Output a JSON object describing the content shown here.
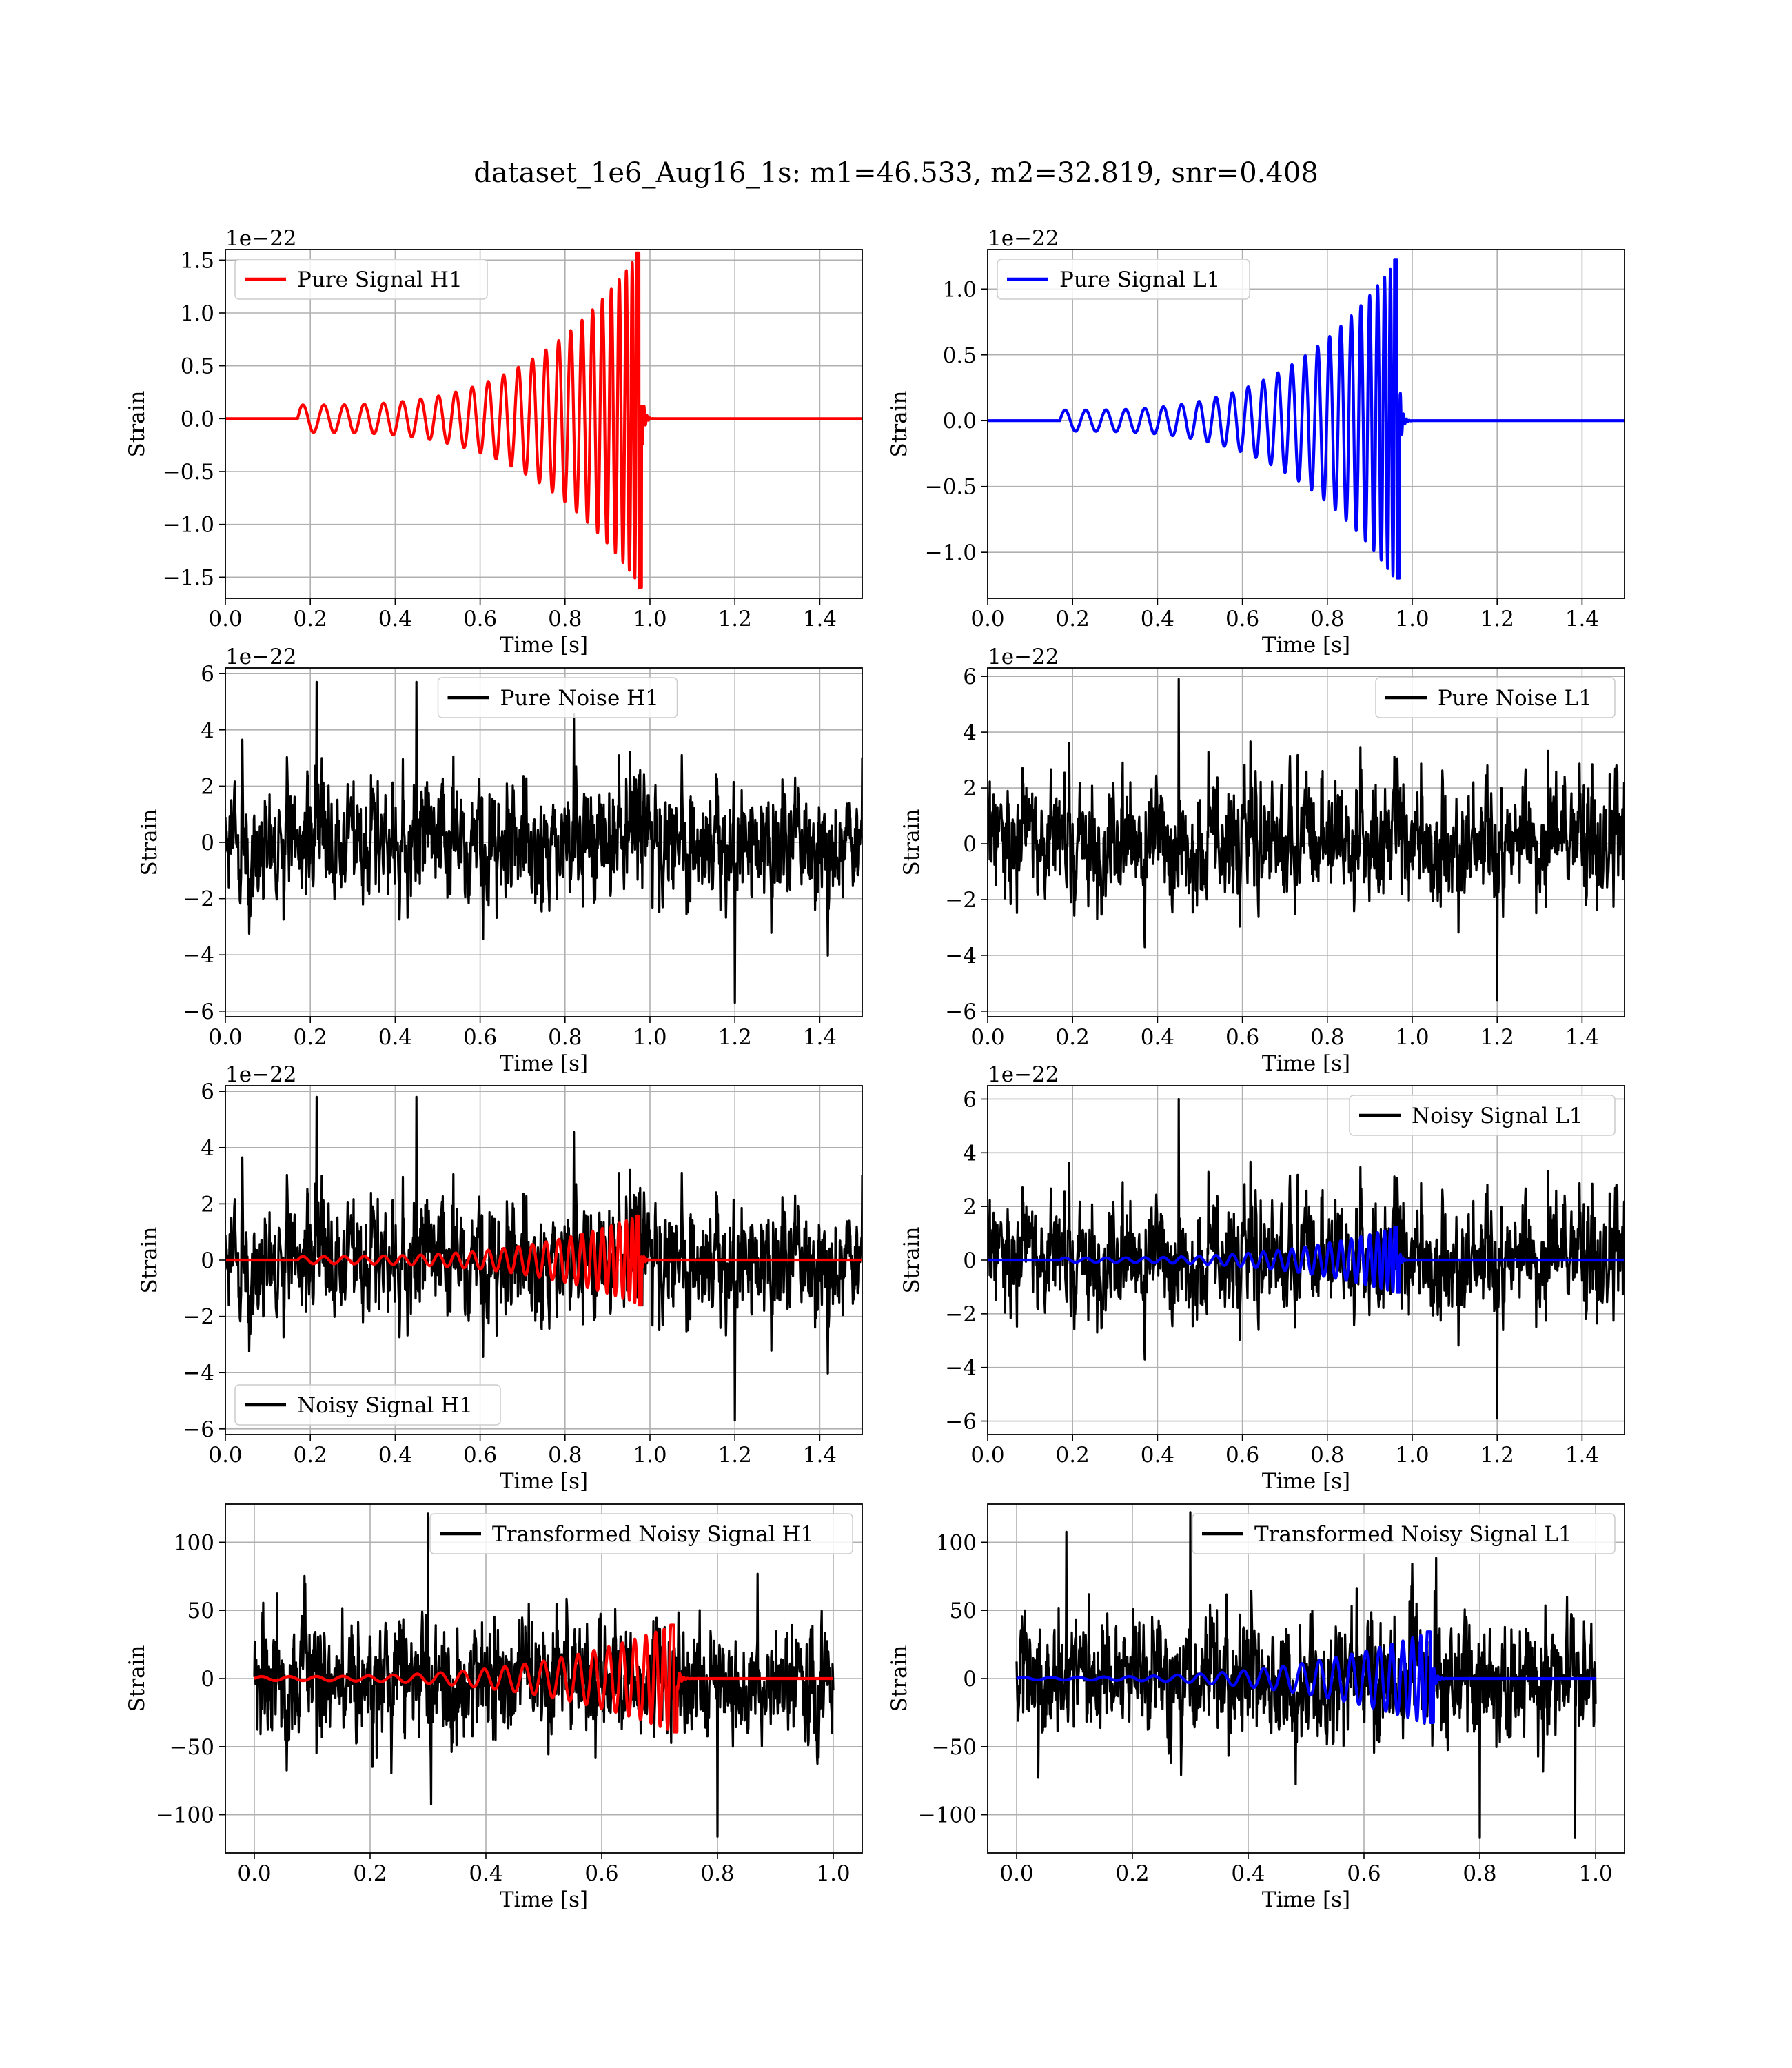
{
  "figure": {
    "title": "dataset_1e6_Aug16_1s: m1=46.533, m2=32.819, snr=0.408"
  },
  "colors": {
    "h1_signal": "#ff0000",
    "l1_signal": "#0000ff",
    "noise": "#000000",
    "grid": "#b0b0b0"
  },
  "chart_data": [
    {
      "id": "pure-signal-h1",
      "type": "line",
      "title": "",
      "xlabel": "Time [s]",
      "ylabel": "Strain",
      "offset_text": "1e−22",
      "xlim": [
        0.0,
        1.5
      ],
      "ylim": [
        -1.7,
        1.6
      ],
      "xticks": [
        "0.0",
        "0.2",
        "0.4",
        "0.6",
        "0.8",
        "1.0",
        "1.2",
        "1.4"
      ],
      "yticks": [
        "−1.5",
        "−1.0",
        "−0.5",
        "0.0",
        "0.5",
        "1.0",
        "1.5"
      ],
      "legend_position": "upper left",
      "grid": true,
      "series": [
        {
          "name": "Pure Signal H1",
          "color": "#ff0000",
          "kind": "chirp",
          "x_end": 1.5,
          "t0": 0.17,
          "tc": 0.98,
          "amp_start": 0.13,
          "amp_peak": 1.6,
          "peak_neg": -1.63,
          "cycles": 26,
          "seed": 1
        }
      ]
    },
    {
      "id": "pure-signal-l1",
      "type": "line",
      "title": "",
      "xlabel": "Time [s]",
      "ylabel": "Strain",
      "offset_text": "1e−22",
      "xlim": [
        0.0,
        1.5
      ],
      "ylim": [
        -1.35,
        1.3
      ],
      "xticks": [
        "0.0",
        "0.2",
        "0.4",
        "0.6",
        "0.8",
        "1.0",
        "1.2",
        "1.4"
      ],
      "yticks": [
        "−1.0",
        "−0.5",
        "0.0",
        "0.5",
        "1.0"
      ],
      "legend_position": "upper left",
      "grid": true,
      "series": [
        {
          "name": "Pure Signal L1",
          "color": "#0000ff",
          "kind": "chirp",
          "x_end": 1.5,
          "t0": 0.17,
          "tc": 0.97,
          "amp_start": 0.08,
          "amp_peak": 1.25,
          "peak_neg": -1.22,
          "cycles": 26,
          "seed": 2
        }
      ]
    },
    {
      "id": "pure-noise-h1",
      "type": "line",
      "title": "",
      "xlabel": "Time [s]",
      "ylabel": "Strain",
      "offset_text": "1e−22",
      "xlim": [
        0.0,
        1.5
      ],
      "ylim": [
        -6.2,
        6.2
      ],
      "xticks": [
        "0.0",
        "0.2",
        "0.4",
        "0.6",
        "0.8",
        "1.0",
        "1.2",
        "1.4"
      ],
      "yticks": [
        "−6",
        "−4",
        "−2",
        "0",
        "2",
        "4",
        "6"
      ],
      "legend_position": "upper center",
      "grid": true,
      "series": [
        {
          "name": "Pure Noise H1",
          "color": "#000000",
          "kind": "noise",
          "x_end": 1.5,
          "sigma": 1.35,
          "max": 5.7,
          "min": -5.7,
          "seed": 11
        }
      ]
    },
    {
      "id": "pure-noise-l1",
      "type": "line",
      "title": "",
      "xlabel": "Time [s]",
      "ylabel": "Strain",
      "offset_text": "1e−22",
      "xlim": [
        0.0,
        1.5
      ],
      "ylim": [
        -6.2,
        6.3
      ],
      "xticks": [
        "0.0",
        "0.2",
        "0.4",
        "0.6",
        "0.8",
        "1.0",
        "1.2",
        "1.4"
      ],
      "yticks": [
        "−6",
        "−4",
        "−2",
        "0",
        "2",
        "4",
        "6"
      ],
      "legend_position": "upper right",
      "grid": true,
      "series": [
        {
          "name": "Pure Noise L1",
          "color": "#000000",
          "kind": "noise",
          "x_end": 1.5,
          "sigma": 1.35,
          "max": 5.9,
          "min": -5.6,
          "seed": 12
        }
      ]
    },
    {
      "id": "noisy-signal-h1",
      "type": "line",
      "title": "",
      "xlabel": "Time [s]",
      "ylabel": "Strain",
      "offset_text": "1e−22",
      "xlim": [
        0.0,
        1.5
      ],
      "ylim": [
        -6.2,
        6.2
      ],
      "xticks": [
        "0.0",
        "0.2",
        "0.4",
        "0.6",
        "0.8",
        "1.0",
        "1.2",
        "1.4"
      ],
      "yticks": [
        "−6",
        "−4",
        "−2",
        "0",
        "2",
        "4",
        "6"
      ],
      "legend_position": "lower left",
      "grid": true,
      "series": [
        {
          "name": "Noisy Signal H1",
          "color": "#000000",
          "kind": "noise",
          "x_end": 1.5,
          "sigma": 1.35,
          "max": 5.8,
          "min": -5.7,
          "seed": 11
        },
        {
          "name": "",
          "color": "#ff0000",
          "kind": "chirp",
          "x_end": 1.5,
          "t0": 0.17,
          "tc": 0.98,
          "amp_start": 0.13,
          "amp_peak": 1.6,
          "peak_neg": -1.63,
          "cycles": 26,
          "seed": 1
        }
      ]
    },
    {
      "id": "noisy-signal-l1",
      "type": "line",
      "title": "",
      "xlabel": "Time [s]",
      "ylabel": "Strain",
      "offset_text": "1e−22",
      "xlim": [
        0.0,
        1.5
      ],
      "ylim": [
        -6.5,
        6.5
      ],
      "xticks": [
        "0.0",
        "0.2",
        "0.4",
        "0.6",
        "0.8",
        "1.0",
        "1.2",
        "1.4"
      ],
      "yticks": [
        "−6",
        "−4",
        "−2",
        "0",
        "2",
        "4",
        "6"
      ],
      "legend_position": "upper right",
      "grid": true,
      "series": [
        {
          "name": "Noisy Signal L1",
          "color": "#000000",
          "kind": "noise",
          "x_end": 1.5,
          "sigma": 1.35,
          "max": 6.0,
          "min": -5.9,
          "seed": 12
        },
        {
          "name": "",
          "color": "#0000ff",
          "kind": "chirp",
          "x_end": 1.5,
          "t0": 0.17,
          "tc": 0.97,
          "amp_start": 0.08,
          "amp_peak": 1.25,
          "peak_neg": -1.22,
          "cycles": 26,
          "seed": 2
        }
      ]
    },
    {
      "id": "transformed-noisy-signal-h1",
      "type": "line",
      "title": "",
      "xlabel": "Time [s]",
      "ylabel": "Strain",
      "offset_text": "",
      "xlim": [
        -0.05,
        1.05
      ],
      "ylim": [
        -128,
        128
      ],
      "xticks": [
        "0.0",
        "0.2",
        "0.4",
        "0.6",
        "0.8",
        "1.0"
      ],
      "yticks": [
        "−100",
        "−50",
        "0",
        "50",
        "100"
      ],
      "legend_position": "upper right",
      "grid": true,
      "series": [
        {
          "name": "Transformed Noisy Signal H1",
          "color": "#000000",
          "kind": "noise",
          "x_end": 1.0,
          "sigma": 26,
          "max": 121,
          "min": -116,
          "seed": 21
        },
        {
          "name": "",
          "color": "#ff0000",
          "kind": "chirp",
          "x_end": 1.0,
          "t0": 0.0,
          "tc": 0.73,
          "amp_start": 1.5,
          "amp_peak": 40,
          "peak_neg": -40,
          "cycles": 24,
          "seed": 3
        }
      ]
    },
    {
      "id": "transformed-noisy-signal-l1",
      "type": "line",
      "title": "",
      "xlabel": "Time [s]",
      "ylabel": "Strain",
      "offset_text": "",
      "xlim": [
        -0.05,
        1.05
      ],
      "ylim": [
        -128,
        128
      ],
      "xticks": [
        "0.0",
        "0.2",
        "0.4",
        "0.6",
        "0.8",
        "1.0"
      ],
      "yticks": [
        "−100",
        "−50",
        "0",
        "50",
        "100"
      ],
      "legend_position": "upper right",
      "grid": true,
      "series": [
        {
          "name": "Transformed Noisy Signal L1",
          "color": "#000000",
          "kind": "noise",
          "x_end": 1.0,
          "sigma": 26,
          "max": 122,
          "min": -117,
          "seed": 22
        },
        {
          "name": "",
          "color": "#0000ff",
          "kind": "chirp",
          "x_end": 1.0,
          "t0": 0.0,
          "tc": 0.72,
          "amp_start": 1.0,
          "amp_peak": 35,
          "peak_neg": -33,
          "cycles": 24,
          "seed": 4
        }
      ]
    }
  ]
}
